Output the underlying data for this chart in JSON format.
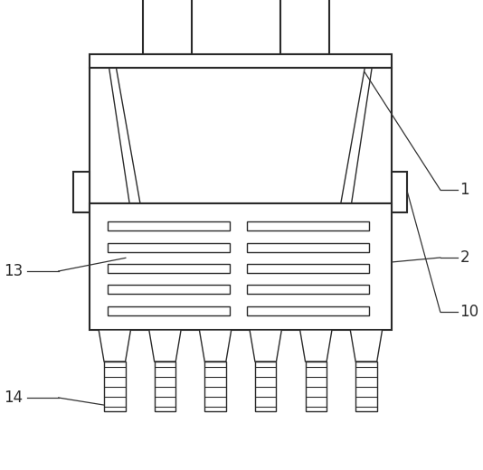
{
  "bg_color": "#ffffff",
  "line_color": "#2a2a2a",
  "slot_fill": "#ffffff",
  "tooth_fill": "#ffffff",
  "figsize": [
    5.34,
    5.2
  ],
  "dpi": 100
}
